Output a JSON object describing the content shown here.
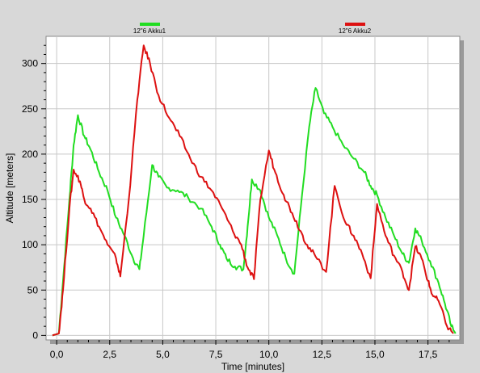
{
  "chart_data": {
    "type": "line",
    "title": "",
    "xlabel": "Time [minutes]",
    "ylabel": "Altitude [meters]",
    "xlim": [
      -0.5,
      19.0
    ],
    "ylim": [
      -5,
      330
    ],
    "x_ticks": [
      0,
      2.5,
      5,
      7.5,
      10,
      12.5,
      15,
      17.5
    ],
    "x_tick_labels": [
      "0,0",
      "2,5",
      "5,0",
      "7,5",
      "10,0",
      "12,5",
      "15,0",
      "17,5"
    ],
    "y_ticks": [
      0,
      50,
      100,
      150,
      200,
      250,
      300
    ],
    "y_tick_labels": [
      "0",
      "50",
      "100",
      "150",
      "200",
      "250",
      "300"
    ],
    "grid": true,
    "legend": "top",
    "series": [
      {
        "name": "12\"6 Akku1",
        "color": "#22dd22",
        "points": [
          [
            -0.2,
            0
          ],
          [
            0.1,
            2
          ],
          [
            0.3,
            60
          ],
          [
            0.6,
            150
          ],
          [
            0.8,
            210
          ],
          [
            1.0,
            243
          ],
          [
            1.3,
            220
          ],
          [
            1.6,
            205
          ],
          [
            2.0,
            180
          ],
          [
            2.4,
            160
          ],
          [
            2.8,
            130
          ],
          [
            3.2,
            110
          ],
          [
            3.6,
            85
          ],
          [
            3.9,
            73
          ],
          [
            4.1,
            110
          ],
          [
            4.5,
            188
          ],
          [
            4.8,
            175
          ],
          [
            5.2,
            163
          ],
          [
            5.7,
            160
          ],
          [
            6.2,
            152
          ],
          [
            6.8,
            140
          ],
          [
            7.3,
            120
          ],
          [
            7.7,
            100
          ],
          [
            8.0,
            85
          ],
          [
            8.4,
            76
          ],
          [
            8.8,
            73
          ],
          [
            9.0,
            120
          ],
          [
            9.2,
            172
          ],
          [
            9.6,
            160
          ],
          [
            10.0,
            130
          ],
          [
            10.4,
            110
          ],
          [
            10.8,
            85
          ],
          [
            11.2,
            68
          ],
          [
            11.5,
            140
          ],
          [
            11.9,
            230
          ],
          [
            12.2,
            273
          ],
          [
            12.6,
            245
          ],
          [
            13.0,
            230
          ],
          [
            13.5,
            210
          ],
          [
            14.0,
            195
          ],
          [
            14.5,
            180
          ],
          [
            14.8,
            165
          ],
          [
            15.1,
            155
          ],
          [
            15.5,
            130
          ],
          [
            15.9,
            110
          ],
          [
            16.3,
            90
          ],
          [
            16.6,
            80
          ],
          [
            16.9,
            118
          ],
          [
            17.2,
            105
          ],
          [
            17.6,
            82
          ],
          [
            18.0,
            58
          ],
          [
            18.3,
            35
          ],
          [
            18.6,
            10
          ],
          [
            18.8,
            2
          ]
        ]
      },
      {
        "name": "12\"6 Akku2",
        "color": "#dd1111",
        "points": [
          [
            -0.2,
            0
          ],
          [
            0.1,
            2
          ],
          [
            0.3,
            50
          ],
          [
            0.6,
            140
          ],
          [
            0.8,
            183
          ],
          [
            1.1,
            170
          ],
          [
            1.3,
            150
          ],
          [
            1.6,
            140
          ],
          [
            2.0,
            120
          ],
          [
            2.4,
            100
          ],
          [
            2.8,
            85
          ],
          [
            3.0,
            65
          ],
          [
            3.4,
            150
          ],
          [
            3.8,
            260
          ],
          [
            4.1,
            320
          ],
          [
            4.4,
            300
          ],
          [
            4.8,
            265
          ],
          [
            5.3,
            240
          ],
          [
            5.8,
            220
          ],
          [
            6.3,
            195
          ],
          [
            6.8,
            175
          ],
          [
            7.3,
            160
          ],
          [
            7.8,
            140
          ],
          [
            8.3,
            115
          ],
          [
            8.7,
            100
          ],
          [
            9.0,
            75
          ],
          [
            9.3,
            62
          ],
          [
            9.6,
            150
          ],
          [
            10.0,
            204
          ],
          [
            10.3,
            180
          ],
          [
            10.7,
            155
          ],
          [
            11.1,
            135
          ],
          [
            11.5,
            115
          ],
          [
            11.8,
            100
          ],
          [
            12.2,
            87
          ],
          [
            12.7,
            70
          ],
          [
            13.1,
            165
          ],
          [
            13.6,
            125
          ],
          [
            14.0,
            110
          ],
          [
            14.4,
            90
          ],
          [
            14.8,
            63
          ],
          [
            15.1,
            145
          ],
          [
            15.5,
            110
          ],
          [
            15.9,
            88
          ],
          [
            16.3,
            70
          ],
          [
            16.6,
            50
          ],
          [
            16.9,
            98
          ],
          [
            17.2,
            85
          ],
          [
            17.5,
            60
          ],
          [
            17.7,
            45
          ],
          [
            18.0,
            38
          ],
          [
            18.4,
            10
          ],
          [
            18.7,
            2
          ]
        ]
      }
    ]
  }
}
